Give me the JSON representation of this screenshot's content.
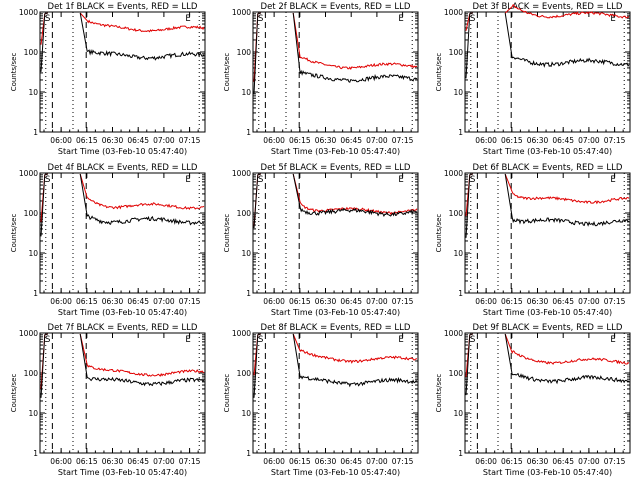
{
  "chart_data": [
    {
      "type": "line",
      "title": "Det 1f BLACK = Events, RED = LLD",
      "xlabel": "Start Time (03-Feb-10 05:47:40)",
      "ylabel": "Counts/sec",
      "x_ticks": [
        "06:00",
        "06:15",
        "06:30",
        "06:45",
        "07:00",
        "07:15"
      ],
      "y_ticks": [
        "1",
        "10",
        "100",
        "1000"
      ],
      "yscale": "log",
      "ylim": [
        1,
        1000
      ],
      "markers": [
        "S",
        "E"
      ],
      "series": [
        {
          "name": "Events",
          "color": "#000000"
        },
        {
          "name": "LLD",
          "color": "#e00000"
        }
      ],
      "levels": {
        "red": 380,
        "black": 80
      }
    },
    {
      "type": "line",
      "title": "Det 2f BLACK = Events, RED = LLD",
      "xlabel": "Start Time (03-Feb-10 05:47:40)",
      "ylabel": "Counts/sec",
      "x_ticks": [
        "06:00",
        "06:15",
        "06:30",
        "06:45",
        "07:00",
        "07:15"
      ],
      "y_ticks": [
        "1",
        "10",
        "100",
        "1000"
      ],
      "yscale": "log",
      "ylim": [
        1,
        1000
      ],
      "markers": [
        "S",
        "E"
      ],
      "series": [
        {
          "name": "Events",
          "color": "#000000"
        },
        {
          "name": "LLD",
          "color": "#e00000"
        }
      ],
      "levels": {
        "red": 45,
        "black": 22
      }
    },
    {
      "type": "line",
      "title": "Det 3f BLACK = Events, RED = LLD",
      "xlabel": "Start Time (03-Feb-10 05:47:40)",
      "ylabel": "Counts/sec",
      "x_ticks": [
        "06:00",
        "06:15",
        "06:30",
        "06:45",
        "07:00",
        "07:15"
      ],
      "y_ticks": [
        "1",
        "10",
        "100",
        "1000"
      ],
      "yscale": "log",
      "ylim": [
        1,
        1000
      ],
      "markers": [
        "S",
        "E"
      ],
      "series": [
        {
          "name": "Events",
          "color": "#000000"
        },
        {
          "name": "LLD",
          "color": "#e00000"
        }
      ],
      "levels": {
        "red": 850,
        "black": 55
      }
    },
    {
      "type": "line",
      "title": "Det 4f BLACK = Events, RED = LLD",
      "xlabel": "Start Time (03-Feb-10 05:47:40)",
      "ylabel": "Counts/sec",
      "x_ticks": [
        "06:00",
        "06:15",
        "06:30",
        "06:45",
        "07:00",
        "07:15"
      ],
      "y_ticks": [
        "1",
        "10",
        "100",
        "1000"
      ],
      "yscale": "log",
      "ylim": [
        1,
        1000
      ],
      "markers": [
        "S",
        "E"
      ],
      "series": [
        {
          "name": "Events",
          "color": "#000000"
        },
        {
          "name": "LLD",
          "color": "#e00000"
        }
      ],
      "levels": {
        "red": 150,
        "black": 65
      }
    },
    {
      "type": "line",
      "title": "Det 5f BLACK = Events, RED = LLD",
      "xlabel": "Start Time (03-Feb-10 05:47:40)",
      "ylabel": "Counts/sec",
      "x_ticks": [
        "06:00",
        "06:15",
        "06:30",
        "06:45",
        "07:00",
        "07:15"
      ],
      "y_ticks": [
        "1",
        "10",
        "100",
        "1000"
      ],
      "yscale": "log",
      "ylim": [
        1,
        1000
      ],
      "markers": [
        "S",
        "E"
      ],
      "series": [
        {
          "name": "Events",
          "color": "#000000"
        },
        {
          "name": "LLD",
          "color": "#e00000"
        }
      ],
      "levels": {
        "red": 115,
        "black": 105
      }
    },
    {
      "type": "line",
      "title": "Det 6f BLACK = Events, RED = LLD",
      "xlabel": "Start Time (03-Feb-10 05:47:40)",
      "ylabel": "Counts/sec",
      "x_ticks": [
        "06:00",
        "06:15",
        "06:30",
        "06:45",
        "07:00",
        "07:15"
      ],
      "y_ticks": [
        "1",
        "10",
        "100",
        "1000"
      ],
      "yscale": "log",
      "ylim": [
        1,
        1000
      ],
      "markers": [
        "S",
        "E"
      ],
      "series": [
        {
          "name": "Events",
          "color": "#000000"
        },
        {
          "name": "LLD",
          "color": "#e00000"
        }
      ],
      "levels": {
        "red": 210,
        "black": 60
      }
    },
    {
      "type": "line",
      "title": "Det 7f BLACK = Events, RED = LLD",
      "xlabel": "Start Time (03-Feb-10 05:47:40)",
      "ylabel": "Counts/sec",
      "x_ticks": [
        "06:00",
        "06:15",
        "06:30",
        "06:45",
        "07:00",
        "07:15"
      ],
      "y_ticks": [
        "1",
        "10",
        "100",
        "1000"
      ],
      "yscale": "log",
      "ylim": [
        1,
        1000
      ],
      "markers": [
        "S",
        "E"
      ],
      "series": [
        {
          "name": "Events",
          "color": "#000000"
        },
        {
          "name": "LLD",
          "color": "#e00000"
        }
      ],
      "levels": {
        "red": 100,
        "black": 60
      }
    },
    {
      "type": "line",
      "title": "Det 8f BLACK = Events, RED = LLD",
      "xlabel": "Start Time (03-Feb-10 05:47:40)",
      "ylabel": "Counts/sec",
      "x_ticks": [
        "06:00",
        "06:15",
        "06:30",
        "06:45",
        "07:00",
        "07:15"
      ],
      "y_ticks": [
        "1",
        "10",
        "100",
        "1000"
      ],
      "yscale": "log",
      "ylim": [
        1,
        1000
      ],
      "markers": [
        "S",
        "E"
      ],
      "series": [
        {
          "name": "Events",
          "color": "#000000"
        },
        {
          "name": "LLD",
          "color": "#e00000"
        }
      ],
      "levels": {
        "red": 220,
        "black": 60
      }
    },
    {
      "type": "line",
      "title": "Det 9f BLACK = Events, RED = LLD",
      "xlabel": "Start Time (03-Feb-10 05:47:40)",
      "ylabel": "Counts/sec",
      "x_ticks": [
        "06:00",
        "06:15",
        "06:30",
        "06:45",
        "07:00",
        "07:15"
      ],
      "y_ticks": [
        "1",
        "10",
        "100",
        "1000"
      ],
      "yscale": "log",
      "ylim": [
        1,
        1000
      ],
      "markers": [
        "S",
        "E"
      ],
      "series": [
        {
          "name": "Events",
          "color": "#000000"
        },
        {
          "name": "LLD",
          "color": "#e00000"
        }
      ],
      "levels": {
        "red": 200,
        "black": 70
      }
    }
  ]
}
